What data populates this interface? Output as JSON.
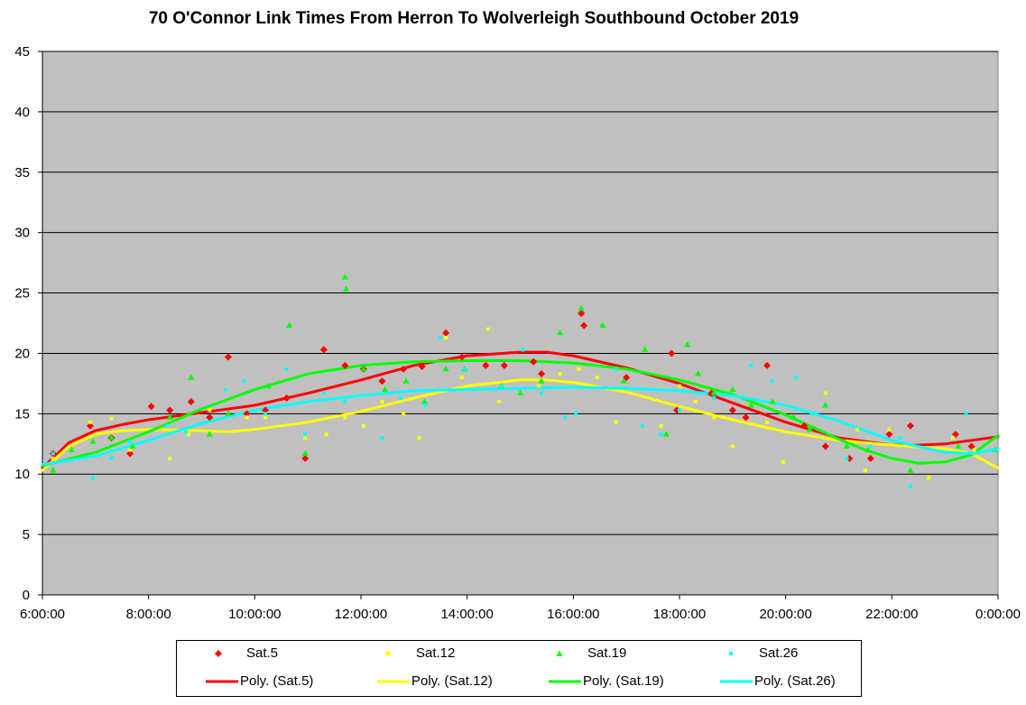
{
  "chart_data": {
    "type": "scatter",
    "title": "70 O'Connor Link Times From Herron To Wolverleigh Southbound October 2019",
    "xlabel": "",
    "ylabel": "",
    "xlim": [
      6,
      24
    ],
    "ylim": [
      0,
      45
    ],
    "grid": "horizontal",
    "plot_background": "#c0c0c0",
    "x_tick_labels": [
      "6:00:00",
      "8:00:00",
      "10:00:00",
      "12:00:00",
      "14:00:00",
      "16:00:00",
      "18:00:00",
      "20:00:00",
      "22:00:00",
      "0:00:00"
    ],
    "y_tick_labels": [
      "0",
      "5",
      "10",
      "15",
      "20",
      "25",
      "30",
      "35",
      "40",
      "45"
    ],
    "legend_position": "bottom",
    "series": [
      {
        "name": "Sat.5",
        "color": "#ff0000",
        "marker": "diamond",
        "points": [
          [
            6.2,
            11.7
          ],
          [
            6.9,
            14.0
          ],
          [
            7.3,
            13.0
          ],
          [
            7.65,
            11.7
          ],
          [
            8.05,
            15.6
          ],
          [
            8.4,
            15.3
          ],
          [
            8.8,
            16.0
          ],
          [
            9.15,
            14.7
          ],
          [
            9.5,
            19.7
          ],
          [
            9.85,
            15.0
          ],
          [
            10.2,
            15.3
          ],
          [
            10.6,
            16.3
          ],
          [
            10.95,
            11.3
          ],
          [
            11.3,
            20.3
          ],
          [
            11.7,
            19.0
          ],
          [
            12.05,
            18.7
          ],
          [
            12.4,
            17.7
          ],
          [
            12.8,
            18.7
          ],
          [
            13.15,
            18.9
          ],
          [
            13.6,
            21.7
          ],
          [
            13.9,
            19.7
          ],
          [
            14.35,
            19.0
          ],
          [
            14.7,
            19.0
          ],
          [
            15.25,
            19.3
          ],
          [
            15.4,
            18.3
          ],
          [
            16.15,
            23.3
          ],
          [
            16.2,
            22.3
          ],
          [
            17.0,
            18.0
          ],
          [
            17.85,
            20.0
          ],
          [
            17.95,
            15.3
          ],
          [
            18.6,
            16.7
          ],
          [
            19.0,
            15.3
          ],
          [
            19.25,
            14.7
          ],
          [
            19.65,
            19.0
          ],
          [
            20.35,
            14.0
          ],
          [
            20.75,
            12.3
          ],
          [
            21.2,
            11.3
          ],
          [
            21.6,
            11.3
          ],
          [
            21.95,
            13.3
          ],
          [
            22.35,
            14.0
          ],
          [
            23.2,
            13.3
          ],
          [
            23.5,
            12.3
          ]
        ]
      },
      {
        "name": "Sat.12",
        "color": "#ffff00",
        "marker": "square",
        "points": [
          [
            6.2,
            11.3
          ],
          [
            6.9,
            14.3
          ],
          [
            7.3,
            14.6
          ],
          [
            7.65,
            12.0
          ],
          [
            8.4,
            11.3
          ],
          [
            8.75,
            13.3
          ],
          [
            9.15,
            15.3
          ],
          [
            9.85,
            14.7
          ],
          [
            10.2,
            14.7
          ],
          [
            10.95,
            13.0
          ],
          [
            11.35,
            13.3
          ],
          [
            11.7,
            14.7
          ],
          [
            12.05,
            14.0
          ],
          [
            12.4,
            16.0
          ],
          [
            12.8,
            15.0
          ],
          [
            13.1,
            13.0
          ],
          [
            13.6,
            21.3
          ],
          [
            13.9,
            18.0
          ],
          [
            14.4,
            22.0
          ],
          [
            14.6,
            16.0
          ],
          [
            15.35,
            17.3
          ],
          [
            15.75,
            18.3
          ],
          [
            16.1,
            18.7
          ],
          [
            16.45,
            18.0
          ],
          [
            16.8,
            14.3
          ],
          [
            17.65,
            14.0
          ],
          [
            18.0,
            17.3
          ],
          [
            18.3,
            16.0
          ],
          [
            18.65,
            14.7
          ],
          [
            19.0,
            12.3
          ],
          [
            19.65,
            14.3
          ],
          [
            19.95,
            11.0
          ],
          [
            20.75,
            16.7
          ],
          [
            21.15,
            11.3
          ],
          [
            21.35,
            13.7
          ],
          [
            21.5,
            10.3
          ],
          [
            21.95,
            13.7
          ],
          [
            22.7,
            9.7
          ],
          [
            23.15,
            13.0
          ],
          [
            23.55,
            12.0
          ]
        ]
      },
      {
        "name": "Sat.19",
        "color": "#00ff00",
        "marker": "triangle",
        "points": [
          [
            6.2,
            10.3
          ],
          [
            6.55,
            12.0
          ],
          [
            6.95,
            12.7
          ],
          [
            7.3,
            13.0
          ],
          [
            7.7,
            12.3
          ],
          [
            8.4,
            14.7
          ],
          [
            8.8,
            18.0
          ],
          [
            9.15,
            13.3
          ],
          [
            9.5,
            15.0
          ],
          [
            10.25,
            17.3
          ],
          [
            10.65,
            22.3
          ],
          [
            10.95,
            11.7
          ],
          [
            11.7,
            26.3
          ],
          [
            11.72,
            25.3
          ],
          [
            12.05,
            18.7
          ],
          [
            12.45,
            17.0
          ],
          [
            12.85,
            17.7
          ],
          [
            13.2,
            16.0
          ],
          [
            13.6,
            18.7
          ],
          [
            13.95,
            18.7
          ],
          [
            14.65,
            17.3
          ],
          [
            15.0,
            16.7
          ],
          [
            15.4,
            17.7
          ],
          [
            15.75,
            21.7
          ],
          [
            16.15,
            23.7
          ],
          [
            16.55,
            22.3
          ],
          [
            16.95,
            17.7
          ],
          [
            17.35,
            20.3
          ],
          [
            17.75,
            13.3
          ],
          [
            18.15,
            20.7
          ],
          [
            18.35,
            18.3
          ],
          [
            18.65,
            16.7
          ],
          [
            19.0,
            17.0
          ],
          [
            19.35,
            15.7
          ],
          [
            19.75,
            16.0
          ],
          [
            20.15,
            14.7
          ],
          [
            20.45,
            13.7
          ],
          [
            20.75,
            15.7
          ],
          [
            21.15,
            12.3
          ],
          [
            21.55,
            12.0
          ],
          [
            22.35,
            10.3
          ],
          [
            23.25,
            12.3
          ],
          [
            23.95,
            12.0
          ]
        ]
      },
      {
        "name": "Sat.26",
        "color": "#00ffff",
        "marker": "square",
        "points": [
          [
            6.2,
            11.7
          ],
          [
            6.95,
            9.7
          ],
          [
            7.3,
            11.3
          ],
          [
            7.65,
            12.7
          ],
          [
            8.35,
            14.0
          ],
          [
            8.7,
            13.5
          ],
          [
            9.45,
            17.0
          ],
          [
            9.8,
            17.7
          ],
          [
            10.2,
            15.0
          ],
          [
            10.6,
            18.7
          ],
          [
            10.95,
            13.3
          ],
          [
            11.3,
            16.7
          ],
          [
            11.7,
            16.0
          ],
          [
            12.4,
            13.0
          ],
          [
            12.75,
            16.3
          ],
          [
            13.2,
            15.7
          ],
          [
            13.5,
            21.3
          ],
          [
            13.95,
            18.7
          ],
          [
            14.65,
            17.3
          ],
          [
            15.05,
            20.3
          ],
          [
            15.4,
            16.7
          ],
          [
            15.85,
            14.7
          ],
          [
            16.05,
            15.0
          ],
          [
            16.8,
            18.7
          ],
          [
            17.3,
            14.0
          ],
          [
            17.65,
            13.3
          ],
          [
            18.0,
            15.3
          ],
          [
            18.35,
            16.7
          ],
          [
            18.65,
            16.3
          ],
          [
            19.35,
            19.0
          ],
          [
            19.75,
            17.7
          ],
          [
            20.2,
            18.0
          ],
          [
            20.5,
            15.0
          ],
          [
            21.15,
            11.3
          ],
          [
            21.6,
            12.3
          ],
          [
            22.15,
            13.0
          ],
          [
            22.35,
            9.0
          ],
          [
            23.4,
            15.0
          ],
          [
            23.95,
            12.0
          ]
        ]
      },
      {
        "name": "Poly. (Sat.5)",
        "color": "#ff0000",
        "line_width": 3,
        "points": [
          [
            6,
            10.5
          ],
          [
            6.5,
            12.6
          ],
          [
            7,
            13.6
          ],
          [
            7.5,
            14.1
          ],
          [
            8,
            14.5
          ],
          [
            9,
            15.1
          ],
          [
            10,
            15.7
          ],
          [
            11,
            16.7
          ],
          [
            12,
            17.8
          ],
          [
            13,
            19.0
          ],
          [
            14,
            19.8
          ],
          [
            15,
            20.1
          ],
          [
            15.5,
            20.1
          ],
          [
            16,
            19.8
          ],
          [
            17,
            18.8
          ],
          [
            18,
            17.5
          ],
          [
            19,
            15.9
          ],
          [
            20,
            14.3
          ],
          [
            21,
            13.0
          ],
          [
            22,
            12.4
          ],
          [
            22.5,
            12.4
          ],
          [
            23,
            12.5
          ],
          [
            24,
            13.1
          ]
        ]
      },
      {
        "name": "Poly. (Sat.12)",
        "color": "#ffff00",
        "line_width": 3,
        "points": [
          [
            6,
            10.3
          ],
          [
            6.5,
            12.3
          ],
          [
            7,
            13.3
          ],
          [
            7.5,
            13.6
          ],
          [
            8,
            13.7
          ],
          [
            9,
            13.6
          ],
          [
            9.5,
            13.5
          ],
          [
            10,
            13.7
          ],
          [
            11,
            14.3
          ],
          [
            12,
            15.2
          ],
          [
            13,
            16.3
          ],
          [
            14,
            17.3
          ],
          [
            15,
            17.8
          ],
          [
            15.5,
            17.8
          ],
          [
            16,
            17.6
          ],
          [
            17,
            16.8
          ],
          [
            18,
            15.6
          ],
          [
            19,
            14.5
          ],
          [
            20,
            13.5
          ],
          [
            21,
            12.8
          ],
          [
            22,
            12.4
          ],
          [
            23,
            12.1
          ],
          [
            23.5,
            11.7
          ],
          [
            24,
            10.5
          ]
        ]
      },
      {
        "name": "Poly. (Sat.19)",
        "color": "#00ff00",
        "line_width": 3,
        "points": [
          [
            6,
            10.7
          ],
          [
            7,
            11.8
          ],
          [
            8,
            13.5
          ],
          [
            9,
            15.4
          ],
          [
            10,
            17.0
          ],
          [
            11,
            18.3
          ],
          [
            12,
            19.0
          ],
          [
            13,
            19.3
          ],
          [
            14,
            19.4
          ],
          [
            15,
            19.4
          ],
          [
            16,
            19.2
          ],
          [
            17,
            18.7
          ],
          [
            18,
            17.8
          ],
          [
            19,
            16.6
          ],
          [
            20,
            14.9
          ],
          [
            21,
            12.9
          ],
          [
            21.5,
            12.0
          ],
          [
            22,
            11.3
          ],
          [
            22.5,
            10.9
          ],
          [
            23,
            11.0
          ],
          [
            23.5,
            11.6
          ],
          [
            24,
            13.2
          ]
        ]
      },
      {
        "name": "Poly. (Sat.26)",
        "color": "#00ffff",
        "line_width": 3,
        "points": [
          [
            6,
            10.8
          ],
          [
            7,
            11.5
          ],
          [
            8,
            12.8
          ],
          [
            9,
            14.2
          ],
          [
            10,
            15.3
          ],
          [
            11,
            16.0
          ],
          [
            12,
            16.5
          ],
          [
            13,
            16.9
          ],
          [
            14,
            17.0
          ],
          [
            15,
            17.1
          ],
          [
            16,
            17.2
          ],
          [
            17,
            17.1
          ],
          [
            18,
            16.9
          ],
          [
            19,
            16.5
          ],
          [
            20,
            15.7
          ],
          [
            21,
            14.4
          ],
          [
            22,
            12.8
          ],
          [
            23,
            11.8
          ],
          [
            23.5,
            11.7
          ],
          [
            24,
            12.1
          ]
        ]
      }
    ]
  }
}
